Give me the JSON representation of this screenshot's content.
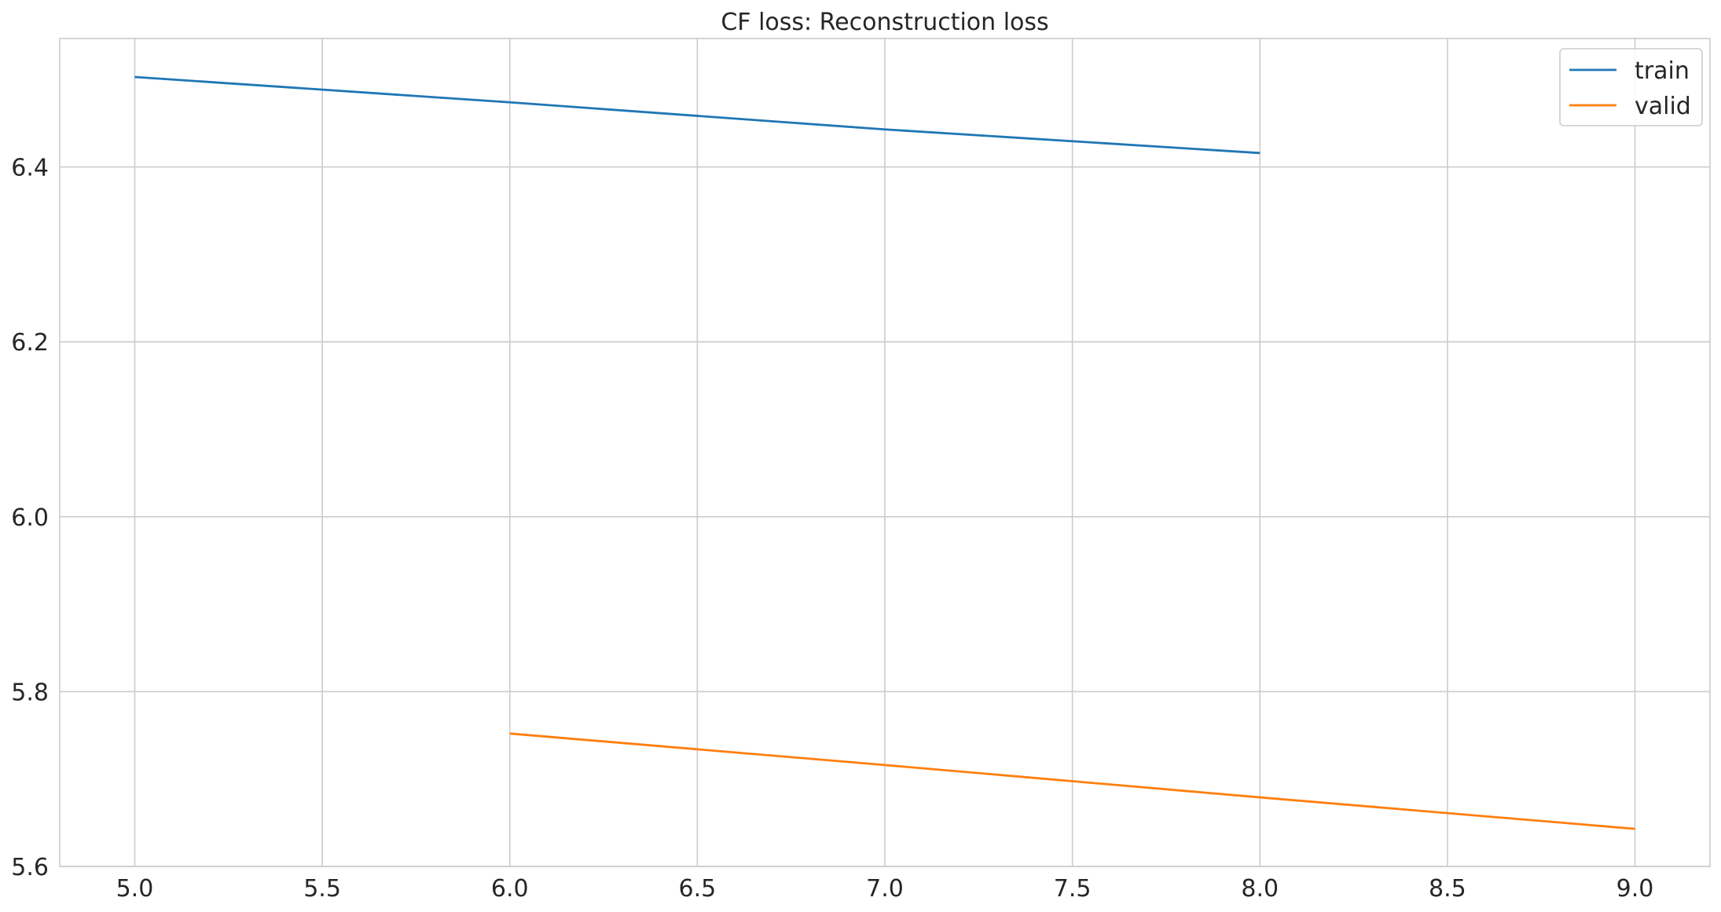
{
  "chart_data": {
    "type": "line",
    "title": "CF loss: Reconstruction loss",
    "xlabel": "",
    "ylabel": "",
    "xlim": [
      4.8,
      9.2
    ],
    "ylim": [
      5.6,
      6.547
    ],
    "x_ticks": [
      5.0,
      5.5,
      6.0,
      6.5,
      7.0,
      7.5,
      8.0,
      8.5,
      9.0
    ],
    "y_ticks": [
      5.6,
      5.8,
      6.0,
      6.2,
      6.4
    ],
    "grid": true,
    "legend_position": "top-right",
    "series": [
      {
        "name": "train",
        "color": "#1f77b4",
        "x": [
          5,
          6,
          7,
          8
        ],
        "y": [
          6.503,
          6.474,
          6.443,
          6.416
        ]
      },
      {
        "name": "valid",
        "color": "#ff7f0e",
        "x": [
          6,
          7,
          8,
          9
        ],
        "y": [
          5.752,
          5.716,
          5.679,
          5.643
        ]
      }
    ]
  }
}
